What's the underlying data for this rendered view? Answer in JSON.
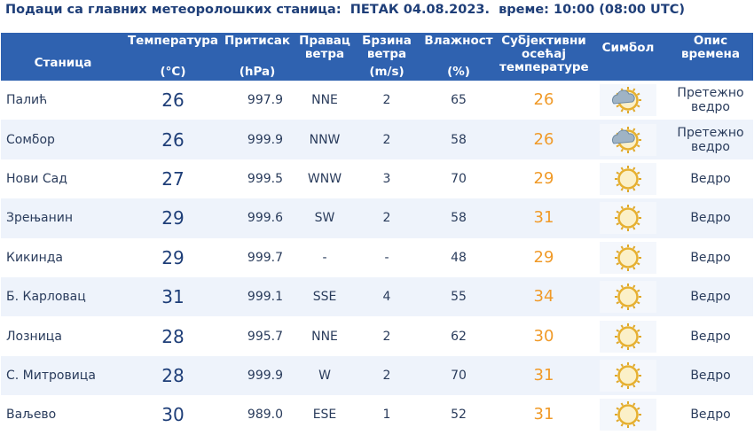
{
  "header": {
    "title": "Подаци са главних метеоролошких станица:  ПЕТАК 04.08.2023.  време: 10:00 (08:00 UTC)"
  },
  "table": {
    "columns": {
      "station": {
        "label": "Станица"
      },
      "temperature": {
        "label": "Температура",
        "unit": "(°C)"
      },
      "pressure": {
        "label": "Притисак",
        "unit": "(hPa)"
      },
      "direction": {
        "label": "Правац ветра"
      },
      "speed": {
        "label": "Брзина ветра",
        "unit": "(m/s)"
      },
      "humidity": {
        "label": "Влажност",
        "unit": "(%)"
      },
      "feels": {
        "label": "Субјективни осећај температуре"
      },
      "symbol": {
        "label": "Симбол"
      },
      "description": {
        "label": "Опис времена"
      }
    },
    "rows": [
      {
        "station": "Палић",
        "temperature": "26",
        "pressure": "997.9",
        "direction": "NNE",
        "speed": "2",
        "humidity": "65",
        "feels": "26",
        "description": "Претежно ведро"
      },
      {
        "station": "Сомбор",
        "temperature": "26",
        "pressure": "999.9",
        "direction": "NNW",
        "speed": "2",
        "humidity": "58",
        "feels": "26",
        "description": "Претежно ведро"
      },
      {
        "station": "Нови Сад",
        "temperature": "27",
        "pressure": "999.5",
        "direction": "WNW",
        "speed": "3",
        "humidity": "70",
        "feels": "29",
        "description": "Ведро"
      },
      {
        "station": "Зрењанин",
        "temperature": "29",
        "pressure": "999.6",
        "direction": "SW",
        "speed": "2",
        "humidity": "58",
        "feels": "31",
        "description": "Ведро"
      },
      {
        "station": "Кикинда",
        "temperature": "29",
        "pressure": "999.7",
        "direction": "-",
        "speed": "-",
        "humidity": "48",
        "feels": "29",
        "description": "Ведро"
      },
      {
        "station": "Б. Карловац",
        "temperature": "31",
        "pressure": "999.1",
        "direction": "SSE",
        "speed": "4",
        "humidity": "55",
        "feels": "34",
        "description": "Ведро"
      },
      {
        "station": "Лозница",
        "temperature": "28",
        "pressure": "995.7",
        "direction": "NNE",
        "speed": "2",
        "humidity": "62",
        "feels": "30",
        "description": "Ведро"
      },
      {
        "station": "С. Митровица",
        "temperature": "28",
        "pressure": "999.9",
        "direction": "W",
        "speed": "2",
        "humidity": "70",
        "feels": "31",
        "description": "Ведро"
      },
      {
        "station": "Ваљево",
        "temperature": "30",
        "pressure": "989.0",
        "direction": "ESE",
        "speed": "1",
        "humidity": "52",
        "feels": "31",
        "description": "Ведро"
      }
    ]
  }
}
